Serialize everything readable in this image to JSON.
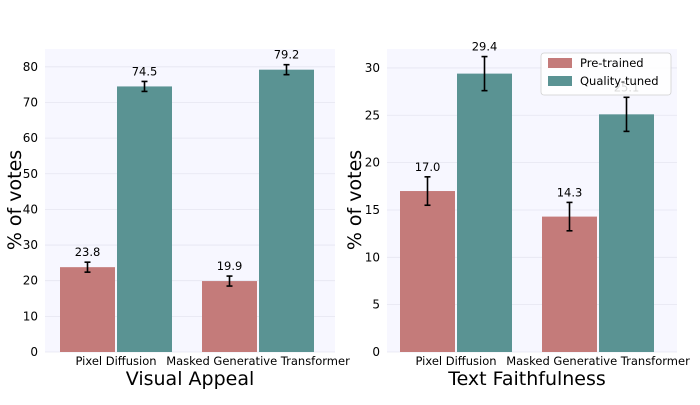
{
  "chart_data": [
    {
      "type": "bar",
      "xlabel": "Visual Appeal",
      "ylabel": "% of votes",
      "categories": [
        "Pixel Diffusion",
        "Masked Generative Transformer"
      ],
      "series": [
        {
          "name": "Pre-trained",
          "color": "#c47b7a",
          "values": [
            23.8,
            19.9
          ],
          "errors": [
            1.4,
            1.4
          ]
        },
        {
          "name": "Quality-tuned",
          "color": "#5a9393",
          "values": [
            74.5,
            79.2
          ],
          "errors": [
            1.4,
            1.4
          ]
        }
      ],
      "ylim": [
        0,
        85
      ],
      "yticks": [
        0,
        10,
        20,
        30,
        40,
        50,
        60,
        70,
        80
      ],
      "grid": true,
      "legend": "none"
    },
    {
      "type": "bar",
      "xlabel": "Text Faithfulness",
      "ylabel": "% of votes",
      "categories": [
        "Pixel Diffusion",
        "Masked Generative Transformer"
      ],
      "series": [
        {
          "name": "Pre-trained",
          "color": "#c47b7a",
          "values": [
            17.0,
            14.3
          ],
          "errors": [
            1.5,
            1.5
          ]
        },
        {
          "name": "Quality-tuned",
          "color": "#5a9393",
          "values": [
            29.4,
            25.1
          ],
          "errors": [
            1.8,
            1.8
          ]
        }
      ],
      "ylim": [
        0,
        32
      ],
      "yticks": [
        0,
        5,
        10,
        15,
        20,
        25,
        30
      ],
      "grid": true,
      "legend": "top-right"
    }
  ]
}
